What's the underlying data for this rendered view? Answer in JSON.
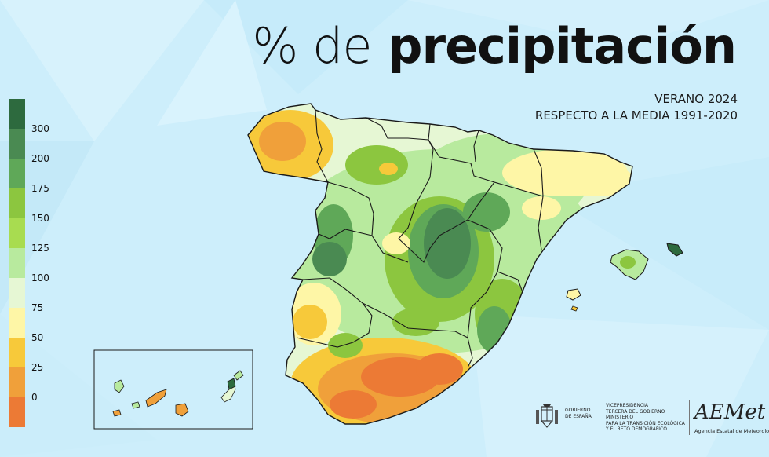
{
  "title": {
    "prefix": "% de",
    "main": "precipitación"
  },
  "subtitle": {
    "line1": "VERANO 2024",
    "line2": "RESPECTO A LA MEDIA 1991-2020"
  },
  "legend": {
    "labels": [
      "300",
      "200",
      "175",
      "150",
      "125",
      "100",
      "75",
      "50",
      "25",
      "0"
    ],
    "colors": [
      "#2d6a3e",
      "#4a8a52",
      "#5fa858",
      "#8cc63f",
      "#a8dc50",
      "#b8ea9e",
      "#e6f7d4",
      "#fef6a6",
      "#f7c93a",
      "#f0a03a",
      "#ec7a35"
    ]
  },
  "map": {
    "colors": {
      "dry_severe": "#ec7a35",
      "dry": "#f0a03a",
      "dry_mild": "#f7c93a",
      "near_normal": "#fef6a6",
      "normal_wet": "#e6f7d4",
      "wet": "#b8ea9e",
      "wetter": "#8cc63f",
      "very_wet": "#5fa858",
      "extreme": "#2d6a3e"
    }
  },
  "logos": {
    "gobierno": "GOBIERNO\nDE ESPAÑA",
    "vicepresidencia": "VICEPRESIDENCIA\nTERCERA DEL GOBIERNO",
    "ministerio": "MINISTERIO\nPARA LA TRANSICIÓN ECOLÓGICA\nY EL RETO DEMOGRÁFICO",
    "aemet": "AEMet",
    "aemet_sub": "Agencia Estatal de Meteorología"
  }
}
